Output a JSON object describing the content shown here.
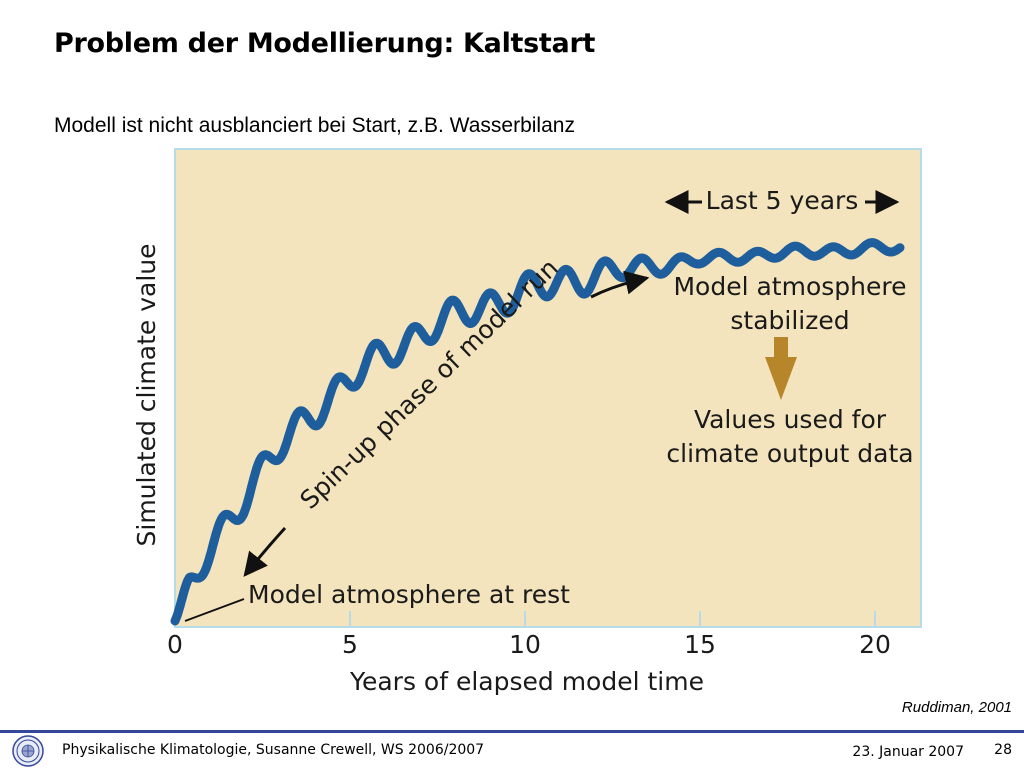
{
  "slide": {
    "title": "Problem der Modellierung: Kaltstart",
    "subtitle": "Modell ist nicht ausblanciert bei Start, z.B. Wasserbilanz"
  },
  "figure": {
    "background_color": "#f4e4bd",
    "border_color": "#b5dce8",
    "curve_color": "#1f5e9c",
    "arrow_color": "#b8862a",
    "y_axis_label": "Simulated climate value",
    "x_axis_label": "Years of elapsed model time",
    "x_ticks": [
      "0",
      "5",
      "10",
      "15",
      "20"
    ],
    "annotations": {
      "last_years": "Last 5 years",
      "stabilized_line1": "Model atmosphere",
      "stabilized_line2": "stabilized",
      "values_line1": "Values used for",
      "values_line2": "climate output data",
      "spinup": "Spin-up phase of model run",
      "at_rest": "Model atmosphere at rest"
    }
  },
  "credit": "Ruddiman, 2001",
  "footer": {
    "left_text": "Physikalische Klimatologie, Susanne Crewell,  WS 2006/2007",
    "date": "23. Januar 2007",
    "page_number": "28",
    "logo_icon": "university-seal-icon",
    "rule_color": "#35479a"
  }
}
